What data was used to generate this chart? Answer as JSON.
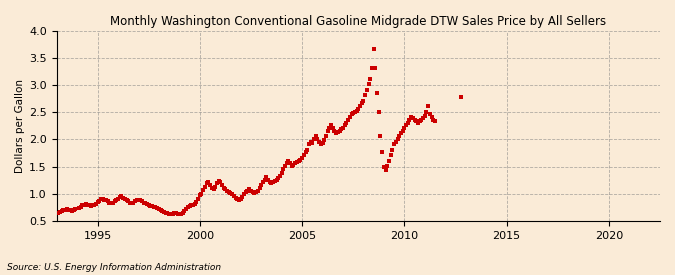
{
  "title": "Monthly Washington Conventional Gasoline Midgrade DTW Sales Price by All Sellers",
  "ylabel": "Dollars per Gallon",
  "source": "Source: U.S. Energy Information Administration",
  "xlim": [
    1993.0,
    2022.5
  ],
  "ylim": [
    0.5,
    4.0
  ],
  "yticks": [
    0.5,
    1.0,
    1.5,
    2.0,
    2.5,
    3.0,
    3.5,
    4.0
  ],
  "xticks": [
    1995,
    2000,
    2005,
    2010,
    2015,
    2020
  ],
  "marker_color": "#cc0000",
  "background_color": "#faebd7",
  "data": [
    [
      1993.08,
      0.65
    ],
    [
      1993.17,
      0.67
    ],
    [
      1993.25,
      0.69
    ],
    [
      1993.33,
      0.7
    ],
    [
      1993.42,
      0.71
    ],
    [
      1993.5,
      0.72
    ],
    [
      1993.58,
      0.71
    ],
    [
      1993.67,
      0.7
    ],
    [
      1993.75,
      0.69
    ],
    [
      1993.83,
      0.7
    ],
    [
      1993.92,
      0.72
    ],
    [
      1994.08,
      0.74
    ],
    [
      1994.17,
      0.76
    ],
    [
      1994.25,
      0.79
    ],
    [
      1994.33,
      0.8
    ],
    [
      1994.42,
      0.81
    ],
    [
      1994.5,
      0.8
    ],
    [
      1994.58,
      0.79
    ],
    [
      1994.67,
      0.78
    ],
    [
      1994.75,
      0.79
    ],
    [
      1994.83,
      0.8
    ],
    [
      1994.92,
      0.82
    ],
    [
      1995.0,
      0.85
    ],
    [
      1995.08,
      0.87
    ],
    [
      1995.17,
      0.9
    ],
    [
      1995.25,
      0.91
    ],
    [
      1995.33,
      0.89
    ],
    [
      1995.42,
      0.88
    ],
    [
      1995.5,
      0.86
    ],
    [
      1995.58,
      0.84
    ],
    [
      1995.67,
      0.83
    ],
    [
      1995.75,
      0.84
    ],
    [
      1995.83,
      0.86
    ],
    [
      1995.92,
      0.88
    ],
    [
      1996.0,
      0.91
    ],
    [
      1996.08,
      0.94
    ],
    [
      1996.17,
      0.96
    ],
    [
      1996.25,
      0.93
    ],
    [
      1996.33,
      0.9
    ],
    [
      1996.42,
      0.88
    ],
    [
      1996.5,
      0.86
    ],
    [
      1996.58,
      0.84
    ],
    [
      1996.67,
      0.83
    ],
    [
      1996.75,
      0.84
    ],
    [
      1996.83,
      0.86
    ],
    [
      1996.92,
      0.88
    ],
    [
      1997.0,
      0.89
    ],
    [
      1997.08,
      0.88
    ],
    [
      1997.17,
      0.86
    ],
    [
      1997.25,
      0.84
    ],
    [
      1997.33,
      0.83
    ],
    [
      1997.42,
      0.81
    ],
    [
      1997.5,
      0.8
    ],
    [
      1997.58,
      0.78
    ],
    [
      1997.67,
      0.77
    ],
    [
      1997.75,
      0.76
    ],
    [
      1997.83,
      0.75
    ],
    [
      1997.92,
      0.74
    ],
    [
      1998.0,
      0.72
    ],
    [
      1998.08,
      0.7
    ],
    [
      1998.17,
      0.68
    ],
    [
      1998.25,
      0.66
    ],
    [
      1998.33,
      0.65
    ],
    [
      1998.42,
      0.64
    ],
    [
      1998.5,
      0.63
    ],
    [
      1998.58,
      0.63
    ],
    [
      1998.67,
      0.63
    ],
    [
      1998.75,
      0.64
    ],
    [
      1998.83,
      0.64
    ],
    [
      1998.92,
      0.63
    ],
    [
      1999.0,
      0.62
    ],
    [
      1999.08,
      0.63
    ],
    [
      1999.17,
      0.65
    ],
    [
      1999.25,
      0.68
    ],
    [
      1999.33,
      0.72
    ],
    [
      1999.42,
      0.75
    ],
    [
      1999.5,
      0.77
    ],
    [
      1999.58,
      0.79
    ],
    [
      1999.67,
      0.8
    ],
    [
      1999.75,
      0.82
    ],
    [
      1999.83,
      0.85
    ],
    [
      1999.92,
      0.91
    ],
    [
      2000.0,
      0.97
    ],
    [
      2000.08,
      1.0
    ],
    [
      2000.17,
      1.07
    ],
    [
      2000.25,
      1.13
    ],
    [
      2000.33,
      1.19
    ],
    [
      2000.42,
      1.21
    ],
    [
      2000.5,
      1.16
    ],
    [
      2000.58,
      1.11
    ],
    [
      2000.67,
      1.09
    ],
    [
      2000.75,
      1.13
    ],
    [
      2000.83,
      1.19
    ],
    [
      2000.92,
      1.23
    ],
    [
      2001.0,
      1.21
    ],
    [
      2001.08,
      1.16
    ],
    [
      2001.17,
      1.11
    ],
    [
      2001.25,
      1.09
    ],
    [
      2001.33,
      1.06
    ],
    [
      2001.42,
      1.03
    ],
    [
      2001.5,
      1.01
    ],
    [
      2001.58,
      0.99
    ],
    [
      2001.67,
      0.96
    ],
    [
      2001.75,
      0.93
    ],
    [
      2001.83,
      0.91
    ],
    [
      2001.92,
      0.89
    ],
    [
      2002.0,
      0.91
    ],
    [
      2002.08,
      0.94
    ],
    [
      2002.17,
      0.99
    ],
    [
      2002.25,
      1.03
    ],
    [
      2002.33,
      1.06
    ],
    [
      2002.42,
      1.09
    ],
    [
      2002.5,
      1.06
    ],
    [
      2002.58,
      1.03
    ],
    [
      2002.67,
      1.01
    ],
    [
      2002.75,
      1.03
    ],
    [
      2002.83,
      1.06
    ],
    [
      2002.92,
      1.11
    ],
    [
      2003.0,
      1.16
    ],
    [
      2003.08,
      1.21
    ],
    [
      2003.17,
      1.26
    ],
    [
      2003.25,
      1.31
    ],
    [
      2003.33,
      1.26
    ],
    [
      2003.42,
      1.21
    ],
    [
      2003.5,
      1.19
    ],
    [
      2003.58,
      1.21
    ],
    [
      2003.67,
      1.23
    ],
    [
      2003.75,
      1.26
    ],
    [
      2003.83,
      1.29
    ],
    [
      2003.92,
      1.33
    ],
    [
      2004.0,
      1.39
    ],
    [
      2004.08,
      1.46
    ],
    [
      2004.17,
      1.51
    ],
    [
      2004.25,
      1.56
    ],
    [
      2004.33,
      1.61
    ],
    [
      2004.42,
      1.56
    ],
    [
      2004.5,
      1.51
    ],
    [
      2004.58,
      1.53
    ],
    [
      2004.67,
      1.56
    ],
    [
      2004.75,
      1.59
    ],
    [
      2004.83,
      1.61
    ],
    [
      2004.92,
      1.63
    ],
    [
      2005.0,
      1.66
    ],
    [
      2005.08,
      1.71
    ],
    [
      2005.17,
      1.76
    ],
    [
      2005.25,
      1.81
    ],
    [
      2005.33,
      1.91
    ],
    [
      2005.42,
      1.96
    ],
    [
      2005.5,
      1.93
    ],
    [
      2005.58,
      2.01
    ],
    [
      2005.67,
      2.06
    ],
    [
      2005.75,
      2.01
    ],
    [
      2005.83,
      1.96
    ],
    [
      2005.92,
      1.91
    ],
    [
      2006.0,
      1.93
    ],
    [
      2006.08,
      1.99
    ],
    [
      2006.17,
      2.06
    ],
    [
      2006.25,
      2.16
    ],
    [
      2006.33,
      2.21
    ],
    [
      2006.42,
      2.26
    ],
    [
      2006.5,
      2.21
    ],
    [
      2006.58,
      2.16
    ],
    [
      2006.67,
      2.11
    ],
    [
      2006.75,
      2.13
    ],
    [
      2006.83,
      2.16
    ],
    [
      2006.92,
      2.19
    ],
    [
      2007.0,
      2.21
    ],
    [
      2007.08,
      2.26
    ],
    [
      2007.17,
      2.31
    ],
    [
      2007.25,
      2.36
    ],
    [
      2007.33,
      2.41
    ],
    [
      2007.42,
      2.46
    ],
    [
      2007.5,
      2.49
    ],
    [
      2007.58,
      2.51
    ],
    [
      2007.67,
      2.53
    ],
    [
      2007.75,
      2.56
    ],
    [
      2007.83,
      2.61
    ],
    [
      2007.92,
      2.66
    ],
    [
      2008.0,
      2.71
    ],
    [
      2008.08,
      2.81
    ],
    [
      2008.17,
      2.91
    ],
    [
      2008.25,
      3.01
    ],
    [
      2008.33,
      3.11
    ],
    [
      2008.42,
      3.31
    ],
    [
      2008.5,
      3.66
    ],
    [
      2008.58,
      3.31
    ],
    [
      2008.67,
      2.86
    ],
    [
      2008.75,
      2.51
    ],
    [
      2008.83,
      2.06
    ],
    [
      2008.92,
      1.76
    ],
    [
      2009.0,
      1.49
    ],
    [
      2009.08,
      1.43
    ],
    [
      2009.17,
      1.51
    ],
    [
      2009.25,
      1.61
    ],
    [
      2009.33,
      1.71
    ],
    [
      2009.42,
      1.81
    ],
    [
      2009.5,
      1.91
    ],
    [
      2009.58,
      1.96
    ],
    [
      2009.67,
      2.01
    ],
    [
      2009.75,
      2.06
    ],
    [
      2009.83,
      2.11
    ],
    [
      2009.92,
      2.16
    ],
    [
      2010.0,
      2.21
    ],
    [
      2010.08,
      2.26
    ],
    [
      2010.17,
      2.31
    ],
    [
      2010.25,
      2.36
    ],
    [
      2010.33,
      2.41
    ],
    [
      2010.42,
      2.39
    ],
    [
      2010.5,
      2.36
    ],
    [
      2010.58,
      2.33
    ],
    [
      2010.67,
      2.31
    ],
    [
      2010.75,
      2.33
    ],
    [
      2010.83,
      2.36
    ],
    [
      2010.92,
      2.39
    ],
    [
      2011.0,
      2.43
    ],
    [
      2011.08,
      2.51
    ],
    [
      2011.17,
      2.61
    ],
    [
      2011.25,
      2.46
    ],
    [
      2011.33,
      2.41
    ],
    [
      2011.42,
      2.36
    ],
    [
      2011.5,
      2.33
    ],
    [
      2012.75,
      2.78
    ]
  ]
}
